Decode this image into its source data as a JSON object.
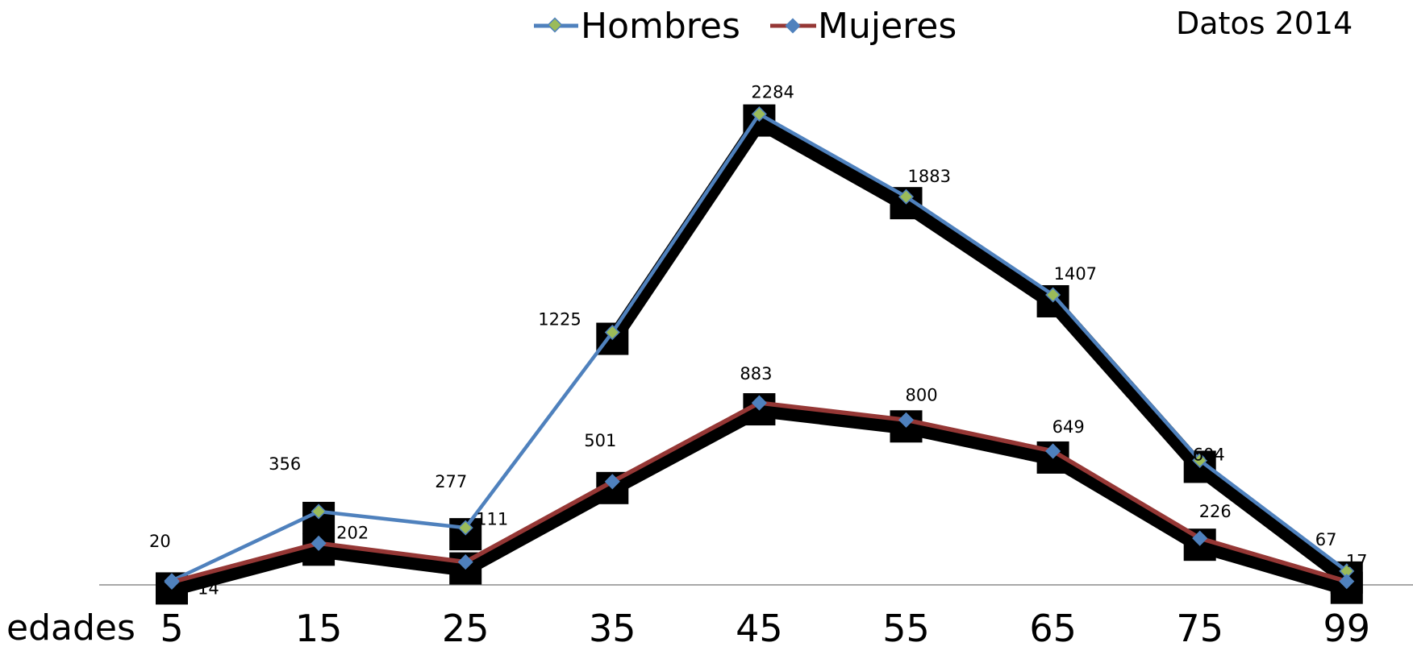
{
  "chart_data": {
    "type": "line",
    "note": "Datos 2014",
    "xlabel": "edades",
    "categories": [
      "5",
      "15",
      "25",
      "35",
      "45",
      "55",
      "65",
      "75",
      "99"
    ],
    "ylim": [
      0,
      2400
    ],
    "grid": false,
    "legend_position": "top",
    "series": [
      {
        "name": "Hombres",
        "values": [
          20,
          356,
          277,
          1225,
          2284,
          1883,
          1407,
          604,
          67
        ],
        "labels": [
          "20",
          "356",
          "277",
          "1225",
          "2284",
          "1883",
          "1407",
          "604",
          "67"
        ],
        "color": "#4f81bd",
        "marker_color": "#9bbb59"
      },
      {
        "name": "Mujeres",
        "values": [
          14,
          202,
          111,
          501,
          883,
          800,
          649,
          226,
          17
        ],
        "labels": [
          "14",
          "202",
          "111",
          "501",
          "883",
          "800",
          "649",
          "226",
          "17"
        ],
        "color": "#953735",
        "marker_color": "#4f81bd"
      }
    ]
  }
}
